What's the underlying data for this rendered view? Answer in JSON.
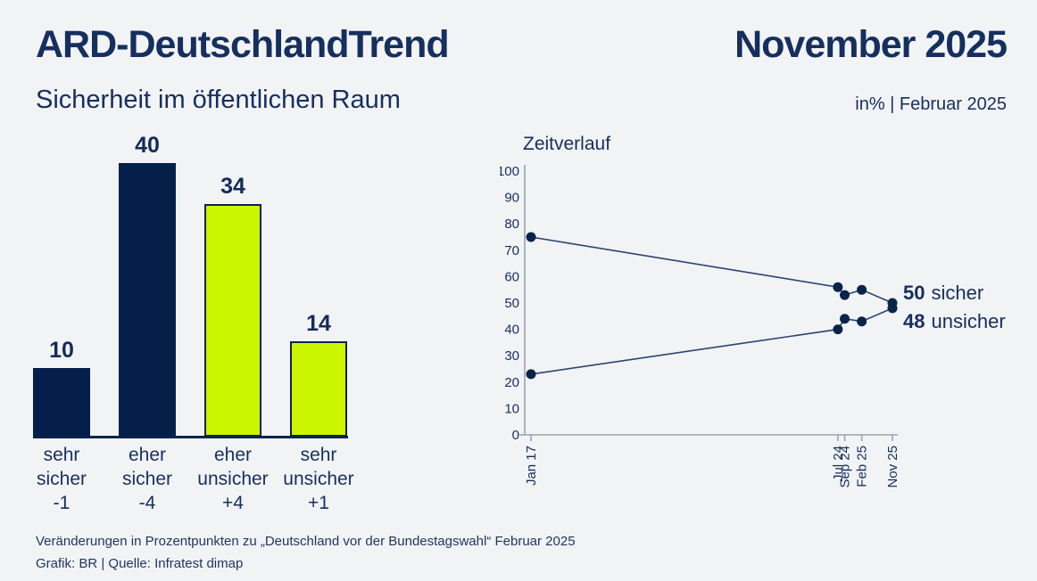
{
  "header": {
    "title": "ARD-DeutschlandTrend",
    "edition": "November 2025",
    "subtitle": "Sicherheit im öffentlichen Raum",
    "unit_note": "in% | Februar 2025"
  },
  "colors": {
    "navy_bar": "#04204A",
    "lime_bar": "#CCF500",
    "heading_navy": "#152F5E",
    "background": "#F2F3F5",
    "axis_gray": "#9BA3B2",
    "line_navy": "#2A4570",
    "dot_navy": "#0A2449"
  },
  "chart_data": [
    {
      "type": "bar",
      "title": "Sicherheit im öffentlichen Raum",
      "categories": [
        "sehr sicher",
        "eher sicher",
        "eher unsicher",
        "sehr unsicher"
      ],
      "categories_stacked": [
        [
          "sehr",
          "sicher"
        ],
        [
          "eher",
          "sicher"
        ],
        [
          "eher",
          "unsicher"
        ],
        [
          "sehr",
          "unsicher"
        ]
      ],
      "values": [
        10,
        40,
        34,
        14
      ],
      "changes": [
        "-1",
        "-4",
        "+4",
        "+1"
      ],
      "bar_colors": [
        "navy",
        "navy",
        "lime",
        "lime"
      ],
      "ylim": [
        0,
        42
      ],
      "grid": false
    },
    {
      "type": "line",
      "title": "Zeitverlauf",
      "x": [
        "Jan 17",
        "Jul 24",
        "Sep 24",
        "Feb 25",
        "Nov 25"
      ],
      "x_months_from_start": [
        0,
        90,
        92,
        97,
        106
      ],
      "series": [
        {
          "name": "sicher",
          "values": [
            75,
            56,
            53,
            55,
            50
          ],
          "end_label": "50"
        },
        {
          "name": "unsicher",
          "values": [
            23,
            40,
            44,
            43,
            48
          ],
          "end_label": "48"
        }
      ],
      "ylim": [
        0,
        100
      ],
      "yticks": [
        0,
        10,
        20,
        30,
        40,
        50,
        60,
        70,
        80,
        90,
        100
      ],
      "grid": false,
      "legend_position": "right-of-last-point"
    }
  ],
  "footer": {
    "note": "Veränderungen in Prozentpunkten zu „Deutschland vor der Bundestagswahl“ Februar 2025",
    "credit": "Grafik: BR | Quelle: Infratest dimap"
  }
}
